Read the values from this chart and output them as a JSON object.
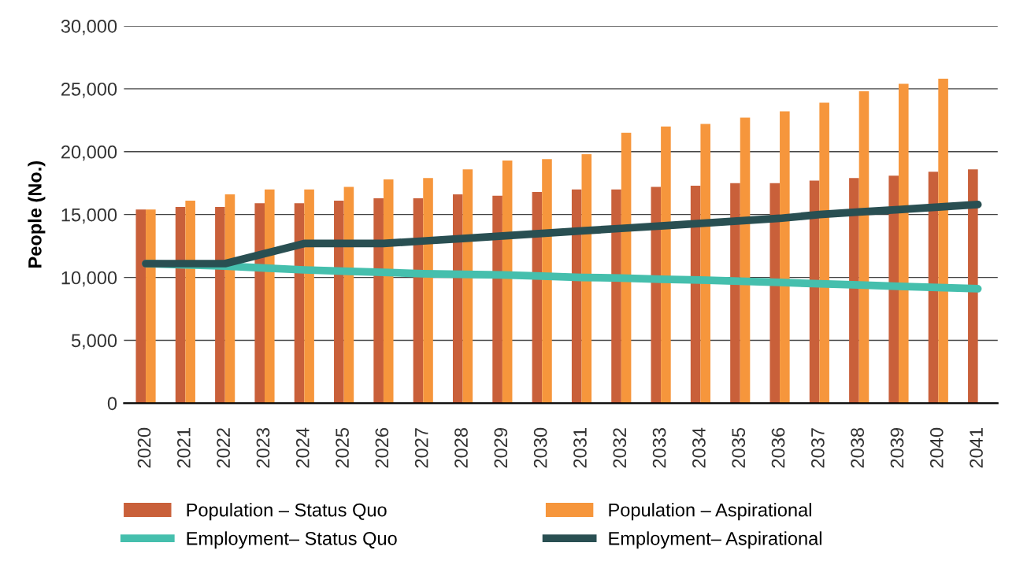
{
  "chart_data": {
    "type": "bar",
    "ylabel": "People (No.)",
    "categories": [
      "2020",
      "2021",
      "2022",
      "2023",
      "2024",
      "2025",
      "2026",
      "2027",
      "2028",
      "2029",
      "2030",
      "2031",
      "2032",
      "2033",
      "2034",
      "2035",
      "2036",
      "2037",
      "2038",
      "2039",
      "2040",
      "2041"
    ],
    "series": [
      {
        "name": "Population – Status Quo",
        "color": "#c9603a",
        "values": [
          15400,
          15600,
          15600,
          15900,
          15900,
          16100,
          16300,
          16300,
          16600,
          16500,
          16800,
          17000,
          17000,
          17200,
          17300,
          17500,
          17500,
          17700,
          17900,
          18100,
          18400,
          18600
        ]
      },
      {
        "name": "Population – Aspirational",
        "color": "#f6963c",
        "values": [
          15400,
          16100,
          16600,
          17000,
          17000,
          17200,
          17800,
          17900,
          18600,
          19300,
          19400,
          19800,
          21500,
          22000,
          22200,
          22700,
          23200,
          23900,
          24800,
          25400,
          25800,
          null
        ]
      },
      {
        "name": "Employment– Status Quo",
        "type": "line",
        "color": "#45bfad",
        "values": [
          11100,
          11000,
          10900,
          10750,
          10600,
          10500,
          10400,
          10300,
          10250,
          10200,
          10100,
          10000,
          9950,
          9850,
          9800,
          9700,
          9600,
          9500,
          9400,
          9300,
          9200,
          9100
        ]
      },
      {
        "name": "Employment– Aspirational",
        "type": "line",
        "color": "#294f52",
        "values": [
          11100,
          11100,
          11100,
          11900,
          12700,
          12700,
          12700,
          12900,
          13100,
          13300,
          13500,
          13700,
          13900,
          14100,
          14300,
          14500,
          14700,
          15000,
          15200,
          15400,
          15600,
          15800
        ]
      }
    ],
    "ylim": [
      0,
      30000
    ],
    "yticks": [
      {
        "value": 0,
        "label": "0"
      },
      {
        "value": 5000,
        "label": "5,000"
      },
      {
        "value": 10000,
        "label": "10,000"
      },
      {
        "value": 15000,
        "label": "15,000"
      },
      {
        "value": 20000,
        "label": "20,000"
      },
      {
        "value": 25000,
        "label": "25,000"
      },
      {
        "value": 30000,
        "label": "30,000"
      }
    ],
    "grid": "y",
    "legend": "bottom"
  }
}
